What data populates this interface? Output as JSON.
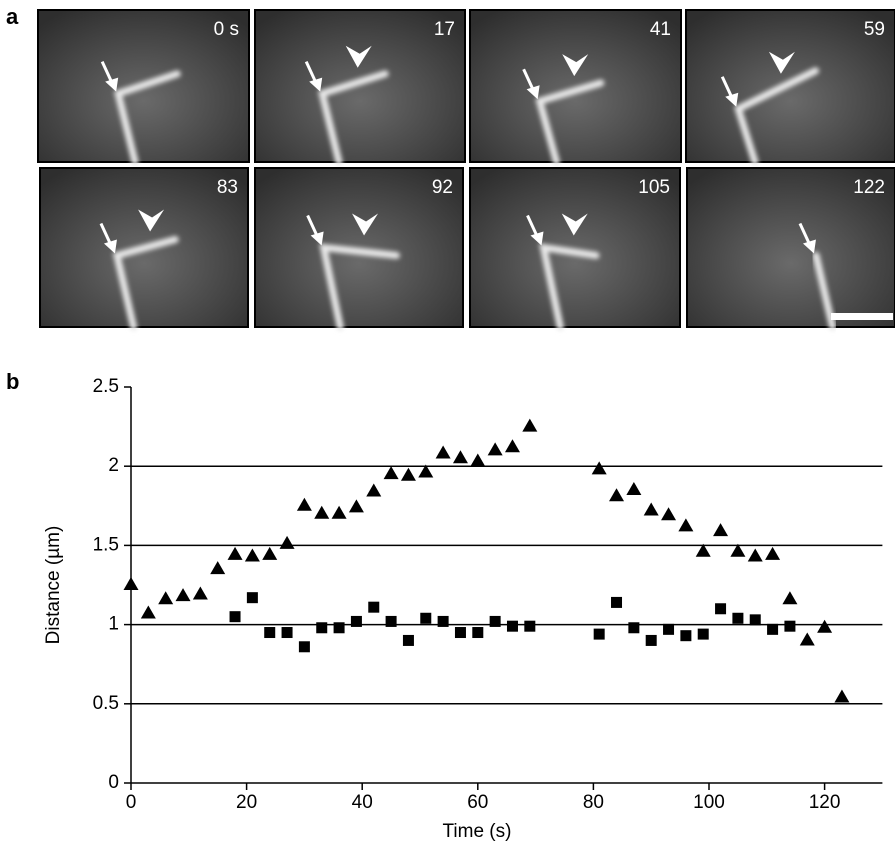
{
  "panels": {
    "a": {
      "label": "a",
      "frames": [
        "0 s",
        "17",
        "41",
        "59",
        "83",
        "92",
        "105",
        "122"
      ]
    },
    "b": {
      "label": "b"
    }
  },
  "chart_data": {
    "type": "scatter",
    "x_label": "Time (s)",
    "y_label": "Distance (µm)",
    "xlim": [
      0,
      130
    ],
    "xticks": [
      0,
      20,
      40,
      60,
      80,
      100,
      120
    ],
    "ylim": [
      0,
      2.5
    ],
    "yticks": [
      0,
      0.5,
      1,
      1.5,
      2,
      2.5
    ],
    "grid": true,
    "series": [
      {
        "marker": "triangle",
        "color": "#000000",
        "x": [
          0,
          3,
          6,
          9,
          12,
          15,
          18,
          21,
          24,
          27,
          30,
          33,
          36,
          39,
          42,
          45,
          48,
          51,
          54,
          57,
          60,
          63,
          66,
          69,
          81,
          84,
          87,
          90,
          93,
          96,
          99,
          102,
          105,
          108,
          111,
          114,
          117,
          120,
          123
        ],
        "values": [
          1.25,
          1.07,
          1.16,
          1.18,
          1.19,
          1.35,
          1.44,
          1.43,
          1.44,
          1.51,
          1.75,
          1.7,
          1.7,
          1.74,
          1.84,
          1.95,
          1.94,
          1.96,
          2.08,
          2.05,
          2.03,
          2.1,
          2.12,
          2.25,
          1.98,
          1.81,
          1.85,
          1.72,
          1.69,
          1.62,
          1.46,
          1.59,
          1.46,
          1.43,
          1.44,
          1.16,
          0.9,
          0.98,
          0.54
        ]
      },
      {
        "marker": "square",
        "color": "#000000",
        "x": [
          18,
          21,
          24,
          27,
          30,
          33,
          36,
          39,
          42,
          45,
          48,
          51,
          54,
          57,
          60,
          63,
          66,
          69,
          81,
          84,
          87,
          90,
          93,
          96,
          99,
          102,
          105,
          108,
          111,
          114
        ],
        "values": [
          1.05,
          1.17,
          0.95,
          0.95,
          0.86,
          0.98,
          0.98,
          1.02,
          1.11,
          1.02,
          0.9,
          1.04,
          1.02,
          0.95,
          0.95,
          1.02,
          0.99,
          0.99,
          0.94,
          1.14,
          0.98,
          0.9,
          0.97,
          0.93,
          0.94,
          1.1,
          1.04,
          1.03,
          0.97,
          0.99
        ]
      }
    ]
  }
}
